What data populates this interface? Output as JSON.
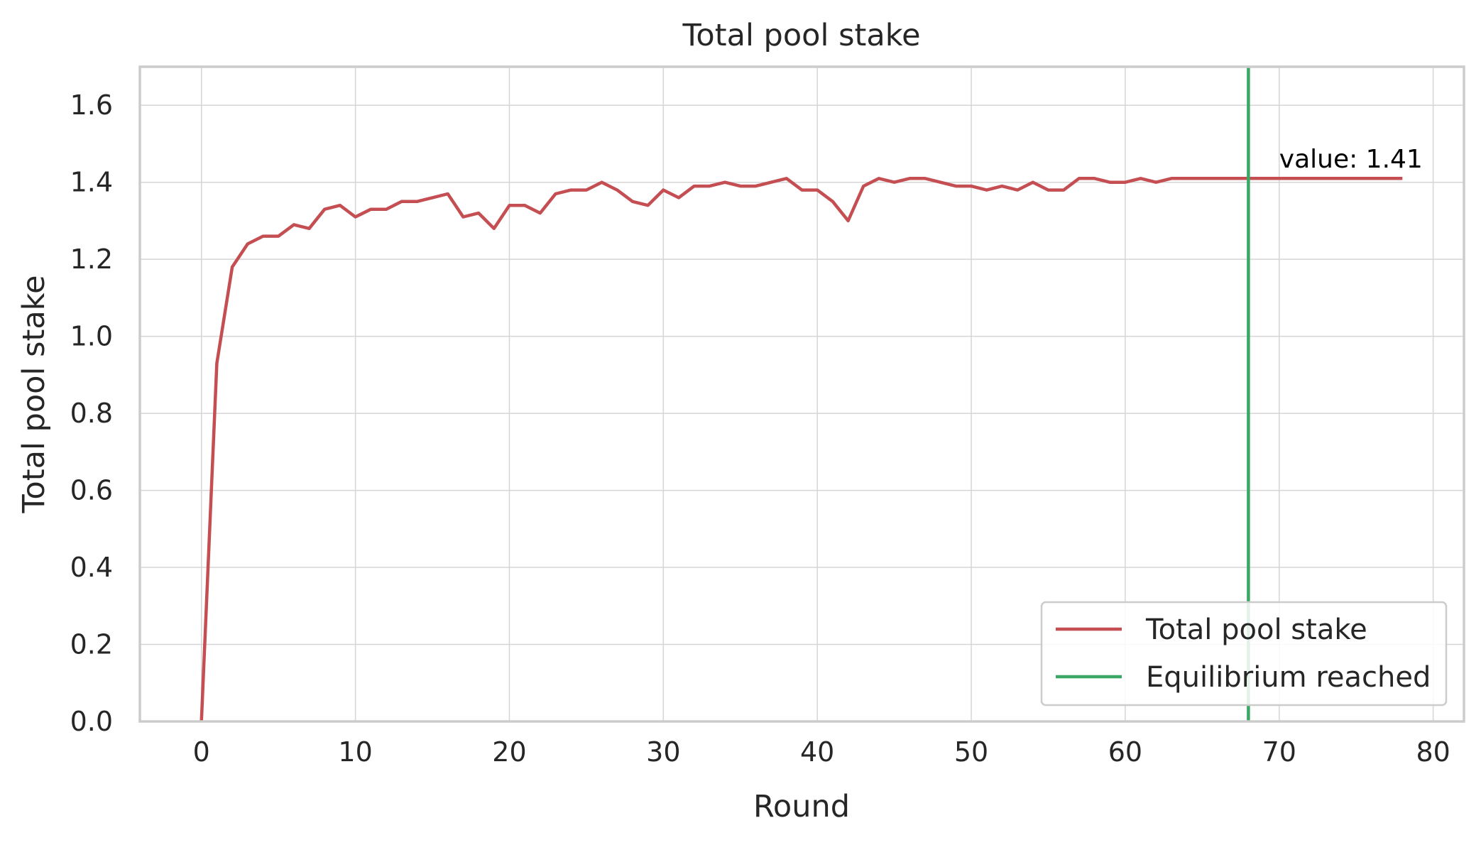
{
  "chart_data": {
    "type": "line",
    "title": "Total pool stake",
    "xlabel": "Round",
    "ylabel": "Total pool stake",
    "xlim": [
      -4,
      82
    ],
    "ylim": [
      0,
      1.7
    ],
    "xticks": [
      0,
      10,
      20,
      30,
      40,
      50,
      60,
      70,
      80
    ],
    "xtick_labels": [
      "0",
      "10",
      "20",
      "30",
      "40",
      "50",
      "60",
      "70",
      "80"
    ],
    "yticks": [
      0.0,
      0.2,
      0.4,
      0.6,
      0.8,
      1.0,
      1.2,
      1.4,
      1.6
    ],
    "ytick_labels": [
      "0.0",
      "0.2",
      "0.4",
      "0.6",
      "0.8",
      "1.0",
      "1.2",
      "1.4",
      "1.6"
    ],
    "grid": true,
    "series": [
      {
        "name": "Total pool stake",
        "color": "#c44e52",
        "x": [
          0,
          1,
          2,
          3,
          4,
          5,
          6,
          7,
          8,
          9,
          10,
          11,
          12,
          13,
          14,
          15,
          16,
          17,
          18,
          19,
          20,
          21,
          22,
          23,
          24,
          25,
          26,
          27,
          28,
          29,
          30,
          31,
          32,
          33,
          34,
          35,
          36,
          37,
          38,
          39,
          40,
          41,
          42,
          43,
          44,
          45,
          46,
          47,
          48,
          49,
          50,
          51,
          52,
          53,
          54,
          55,
          56,
          57,
          58,
          59,
          60,
          61,
          62,
          63,
          64,
          65,
          66,
          67,
          68,
          69,
          70,
          71,
          72,
          73,
          74,
          75,
          76,
          77,
          78
        ],
        "y": [
          0.0,
          0.93,
          1.18,
          1.24,
          1.26,
          1.26,
          1.29,
          1.28,
          1.33,
          1.34,
          1.31,
          1.33,
          1.33,
          1.35,
          1.35,
          1.36,
          1.37,
          1.31,
          1.32,
          1.28,
          1.34,
          1.34,
          1.32,
          1.37,
          1.38,
          1.38,
          1.4,
          1.38,
          1.35,
          1.34,
          1.38,
          1.36,
          1.39,
          1.39,
          1.4,
          1.39,
          1.39,
          1.4,
          1.41,
          1.38,
          1.38,
          1.35,
          1.3,
          1.39,
          1.41,
          1.4,
          1.41,
          1.41,
          1.4,
          1.39,
          1.39,
          1.38,
          1.39,
          1.38,
          1.4,
          1.38,
          1.38,
          1.41,
          1.41,
          1.4,
          1.4,
          1.41,
          1.4,
          1.41,
          1.41,
          1.41,
          1.41,
          1.41,
          1.41,
          1.41,
          1.41,
          1.41,
          1.41,
          1.41,
          1.41,
          1.41,
          1.41,
          1.41,
          1.41
        ]
      }
    ],
    "vlines": [
      {
        "name": "Equilibrium reached",
        "x": 68,
        "color": "#3aa864"
      }
    ],
    "annotations": [
      {
        "text": "value: 1.41",
        "x": 70,
        "y": 1.46
      }
    ],
    "legend": {
      "placement": "lower-right",
      "entries": [
        {
          "label": "Total pool stake",
          "color": "#c44e52"
        },
        {
          "label": "Equilibrium reached",
          "color": "#3aa864"
        }
      ]
    }
  }
}
